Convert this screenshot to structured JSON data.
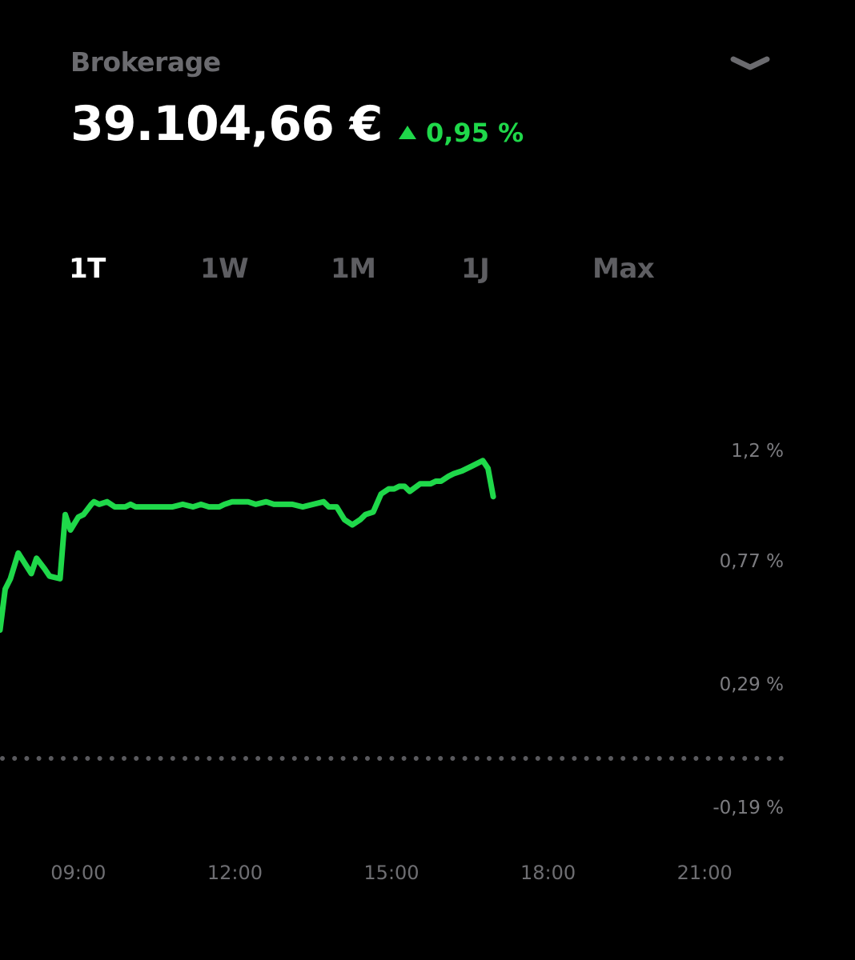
{
  "header": {
    "account_label": "Brokerage",
    "balance": "39.104,66 €",
    "change": "0,95 %"
  },
  "ranges": [
    {
      "label": "1T",
      "active": true
    },
    {
      "label": "1W",
      "active": false
    },
    {
      "label": "1M",
      "active": false
    },
    {
      "label": "1J",
      "active": false
    },
    {
      "label": "Max",
      "active": false
    }
  ],
  "colors": {
    "background": "#000000",
    "positive": "#1fd84a",
    "muted_text": "#6b6b6f"
  },
  "icons": {
    "collapse": "chevron-down-icon",
    "trend": "triangle-up-icon"
  },
  "chart_data": {
    "type": "line",
    "x_axis": {
      "ticks": [
        "09:00",
        "12:00",
        "15:00",
        "18:00",
        "21:00"
      ],
      "tick_hours": [
        9,
        12,
        15,
        18,
        21
      ],
      "range_hours": [
        7.5,
        22.5
      ]
    },
    "y_axis": {
      "ticks": [
        "1,2 %",
        "0,77 %",
        "0,29 %",
        "-0,19 %"
      ],
      "tick_values": [
        1.2,
        0.77,
        0.29,
        -0.19
      ],
      "baseline": 0,
      "baseline_style": "dotted"
    },
    "series": [
      {
        "x": [
          7.5,
          7.6,
          7.7,
          7.85,
          8.1,
          8.2,
          8.35,
          8.45,
          8.65,
          8.75,
          8.85,
          9.0,
          9.1,
          9.25,
          9.3,
          9.4,
          9.55,
          9.7,
          9.9,
          10.0,
          10.1,
          10.25,
          10.5,
          10.6,
          10.8,
          11.0,
          11.2,
          11.35,
          11.5,
          11.7,
          11.8,
          11.95,
          12.1,
          12.25,
          12.4,
          12.6,
          12.75,
          12.95,
          13.1,
          13.3,
          13.5,
          13.7,
          13.8,
          13.95,
          14.1,
          14.25,
          14.4,
          14.5,
          14.65,
          14.8,
          14.95,
          15.05,
          15.15,
          15.25,
          15.35,
          15.55,
          15.75,
          15.85,
          15.95,
          16.1,
          16.2,
          16.35,
          16.55,
          16.75,
          16.85,
          16.95
        ],
        "y": [
          0.5,
          0.66,
          0.7,
          0.8,
          0.72,
          0.78,
          0.74,
          0.71,
          0.7,
          0.95,
          0.89,
          0.94,
          0.95,
          0.99,
          1.0,
          0.99,
          1.0,
          0.98,
          0.98,
          0.99,
          0.98,
          0.98,
          0.98,
          0.98,
          0.98,
          0.99,
          0.98,
          0.99,
          0.98,
          0.98,
          0.99,
          1.0,
          1.0,
          1.0,
          0.99,
          1.0,
          0.99,
          0.99,
          0.99,
          0.98,
          0.99,
          1.0,
          0.98,
          0.98,
          0.93,
          0.91,
          0.93,
          0.95,
          0.96,
          1.03,
          1.05,
          1.05,
          1.06,
          1.06,
          1.04,
          1.07,
          1.07,
          1.08,
          1.08,
          1.1,
          1.11,
          1.12,
          1.14,
          1.16,
          1.13,
          1.02
        ]
      }
    ]
  }
}
